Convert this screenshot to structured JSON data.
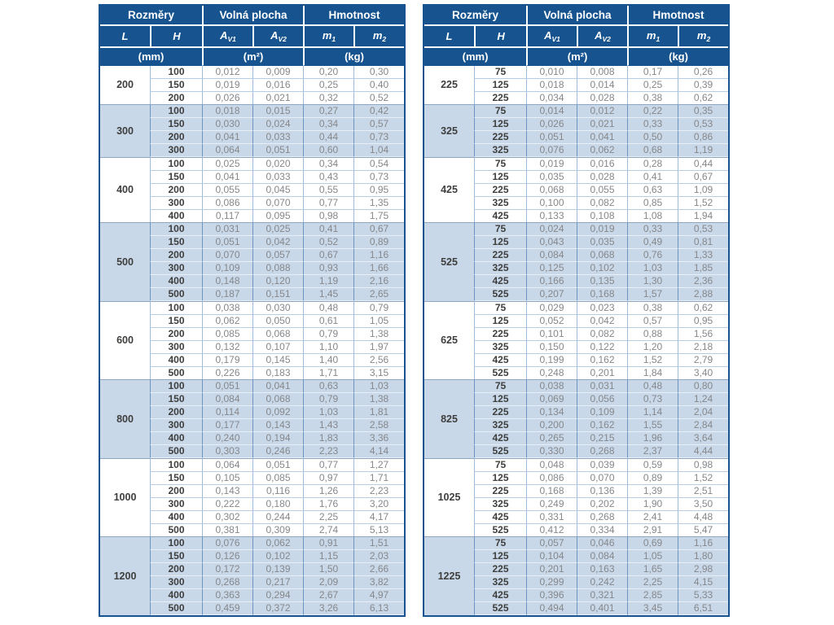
{
  "colors": {
    "header_bg": "#17548f",
    "header_text": "#ffffff",
    "group_shade_bg": "#c9d8e9",
    "shade_border": "#6b94c4",
    "light_border": "#9fbddb",
    "group_divider": "#8fa6c0",
    "value_text": "#85878a",
    "label_text": "#3e3e3d"
  },
  "header": {
    "groups": [
      {
        "label": "Rozměry"
      },
      {
        "label": "Volná plocha"
      },
      {
        "label": "Hmotnost"
      }
    ],
    "cols": [
      {
        "base": "L"
      },
      {
        "base": "H"
      },
      {
        "base": "A",
        "sub": "V1"
      },
      {
        "base": "A",
        "sub": "V2"
      },
      {
        "base": "m",
        "sub": "1"
      },
      {
        "base": "m",
        "sub": "2"
      }
    ],
    "units": [
      {
        "label": "(mm)"
      },
      {
        "label": "(m²)"
      },
      {
        "label": "(kg)"
      }
    ]
  },
  "tables": [
    {
      "name": "left",
      "groups": [
        {
          "L": "200",
          "rows": [
            [
              "100",
              "0,012",
              "0,009",
              "0,20",
              "0,30"
            ],
            [
              "150",
              "0,019",
              "0,016",
              "0,25",
              "0,40"
            ],
            [
              "200",
              "0,026",
              "0,021",
              "0,32",
              "0,52"
            ]
          ]
        },
        {
          "L": "300",
          "rows": [
            [
              "100",
              "0,018",
              "0,015",
              "0,27",
              "0,42"
            ],
            [
              "150",
              "0,030",
              "0,024",
              "0,34",
              "0,57"
            ],
            [
              "200",
              "0,041",
              "0,033",
              "0,44",
              "0,73"
            ],
            [
              "300",
              "0,064",
              "0,051",
              "0,60",
              "1,04"
            ]
          ]
        },
        {
          "L": "400",
          "rows": [
            [
              "100",
              "0,025",
              "0,020",
              "0,34",
              "0,54"
            ],
            [
              "150",
              "0,041",
              "0,033",
              "0,43",
              "0,73"
            ],
            [
              "200",
              "0,055",
              "0,045",
              "0,55",
              "0,95"
            ],
            [
              "300",
              "0,086",
              "0,070",
              "0,77",
              "1,35"
            ],
            [
              "400",
              "0,117",
              "0,095",
              "0,98",
              "1,75"
            ]
          ]
        },
        {
          "L": "500",
          "rows": [
            [
              "100",
              "0,031",
              "0,025",
              "0,41",
              "0,67"
            ],
            [
              "150",
              "0,051",
              "0,042",
              "0,52",
              "0,89"
            ],
            [
              "200",
              "0,070",
              "0,057",
              "0,67",
              "1,16"
            ],
            [
              "300",
              "0,109",
              "0,088",
              "0,93",
              "1,66"
            ],
            [
              "400",
              "0,148",
              "0,120",
              "1,19",
              "2,16"
            ],
            [
              "500",
              "0,187",
              "0,151",
              "1,45",
              "2,65"
            ]
          ]
        },
        {
          "L": "600",
          "rows": [
            [
              "100",
              "0,038",
              "0,030",
              "0,48",
              "0,79"
            ],
            [
              "150",
              "0,062",
              "0,050",
              "0,61",
              "1,05"
            ],
            [
              "200",
              "0,085",
              "0,068",
              "0,79",
              "1,38"
            ],
            [
              "300",
              "0,132",
              "0,107",
              "1,10",
              "1,97"
            ],
            [
              "400",
              "0,179",
              "0,145",
              "1,40",
              "2,56"
            ],
            [
              "500",
              "0,226",
              "0,183",
              "1,71",
              "3,15"
            ]
          ]
        },
        {
          "L": "800",
          "rows": [
            [
              "100",
              "0,051",
              "0,041",
              "0,63",
              "1,03"
            ],
            [
              "150",
              "0,084",
              "0,068",
              "0,79",
              "1,38"
            ],
            [
              "200",
              "0,114",
              "0,092",
              "1,03",
              "1,81"
            ],
            [
              "300",
              "0,177",
              "0,143",
              "1,43",
              "2,58"
            ],
            [
              "400",
              "0,240",
              "0,194",
              "1,83",
              "3,36"
            ],
            [
              "500",
              "0,303",
              "0,246",
              "2,23",
              "4,14"
            ]
          ]
        },
        {
          "L": "1000",
          "rows": [
            [
              "100",
              "0,064",
              "0,051",
              "0,77",
              "1,27"
            ],
            [
              "150",
              "0,105",
              "0,085",
              "0,97",
              "1,71"
            ],
            [
              "200",
              "0,143",
              "0,116",
              "1,26",
              "2,23"
            ],
            [
              "300",
              "0,222",
              "0,180",
              "1,76",
              "3,20"
            ],
            [
              "400",
              "0,302",
              "0,244",
              "2,25",
              "4,17"
            ],
            [
              "500",
              "0,381",
              "0,309",
              "2,74",
              "5,13"
            ]
          ]
        },
        {
          "L": "1200",
          "rows": [
            [
              "100",
              "0,076",
              "0,062",
              "0,91",
              "1,51"
            ],
            [
              "150",
              "0,126",
              "0,102",
              "1,15",
              "2,03"
            ],
            [
              "200",
              "0,172",
              "0,139",
              "1,50",
              "2,66"
            ],
            [
              "300",
              "0,268",
              "0,217",
              "2,09",
              "3,82"
            ],
            [
              "400",
              "0,363",
              "0,294",
              "2,67",
              "4,97"
            ],
            [
              "500",
              "0,459",
              "0,372",
              "3,26",
              "6,13"
            ]
          ]
        }
      ]
    },
    {
      "name": "right",
      "groups": [
        {
          "L": "225",
          "rows": [
            [
              "75",
              "0,010",
              "0,008",
              "0,17",
              "0,26"
            ],
            [
              "125",
              "0,018",
              "0,014",
              "0,25",
              "0,39"
            ],
            [
              "225",
              "0,034",
              "0,028",
              "0,38",
              "0,62"
            ]
          ]
        },
        {
          "L": "325",
          "rows": [
            [
              "75",
              "0,014",
              "0,012",
              "0,22",
              "0,35"
            ],
            [
              "125",
              "0,026",
              "0,021",
              "0,33",
              "0,53"
            ],
            [
              "225",
              "0,051",
              "0,041",
              "0,50",
              "0,86"
            ],
            [
              "325",
              "0,076",
              "0,062",
              "0,68",
              "1,19"
            ]
          ]
        },
        {
          "L": "425",
          "rows": [
            [
              "75",
              "0,019",
              "0,016",
              "0,28",
              "0,44"
            ],
            [
              "125",
              "0,035",
              "0,028",
              "0,41",
              "0,67"
            ],
            [
              "225",
              "0,068",
              "0,055",
              "0,63",
              "1,09"
            ],
            [
              "325",
              "0,100",
              "0,082",
              "0,85",
              "1,52"
            ],
            [
              "425",
              "0,133",
              "0,108",
              "1,08",
              "1,94"
            ]
          ]
        },
        {
          "L": "525",
          "rows": [
            [
              "75",
              "0,024",
              "0,019",
              "0,33",
              "0,53"
            ],
            [
              "125",
              "0,043",
              "0,035",
              "0,49",
              "0,81"
            ],
            [
              "225",
              "0,084",
              "0,068",
              "0,76",
              "1,33"
            ],
            [
              "325",
              "0,125",
              "0,102",
              "1,03",
              "1,85"
            ],
            [
              "425",
              "0,166",
              "0,135",
              "1,30",
              "2,36"
            ],
            [
              "525",
              "0,207",
              "0,168",
              "1,57",
              "2,88"
            ]
          ]
        },
        {
          "L": "625",
          "rows": [
            [
              "75",
              "0,029",
              "0,023",
              "0,38",
              "0,62"
            ],
            [
              "125",
              "0,052",
              "0,042",
              "0,57",
              "0,95"
            ],
            [
              "225",
              "0,101",
              "0,082",
              "0,88",
              "1,56"
            ],
            [
              "325",
              "0,150",
              "0,122",
              "1,20",
              "2,18"
            ],
            [
              "425",
              "0,199",
              "0,162",
              "1,52",
              "2,79"
            ],
            [
              "525",
              "0,248",
              "0,201",
              "1,84",
              "3,40"
            ]
          ]
        },
        {
          "L": "825",
          "rows": [
            [
              "75",
              "0,038",
              "0,031",
              "0,48",
              "0,80"
            ],
            [
              "125",
              "0,069",
              "0,056",
              "0,73",
              "1,24"
            ],
            [
              "225",
              "0,134",
              "0,109",
              "1,14",
              "2,04"
            ],
            [
              "325",
              "0,200",
              "0,162",
              "1,55",
              "2,84"
            ],
            [
              "425",
              "0,265",
              "0,215",
              "1,96",
              "3,64"
            ],
            [
              "525",
              "0,330",
              "0,268",
              "2,37",
              "4,44"
            ]
          ]
        },
        {
          "L": "1025",
          "rows": [
            [
              "75",
              "0,048",
              "0,039",
              "0,59",
              "0,98"
            ],
            [
              "125",
              "0,086",
              "0,070",
              "0,89",
              "1,52"
            ],
            [
              "225",
              "0,168",
              "0,136",
              "1,39",
              "2,51"
            ],
            [
              "325",
              "0,249",
              "0,202",
              "1,90",
              "3,50"
            ],
            [
              "425",
              "0,331",
              "0,268",
              "2,41",
              "4,48"
            ],
            [
              "525",
              "0,412",
              "0,334",
              "2,91",
              "5,47"
            ]
          ]
        },
        {
          "L": "1225",
          "rows": [
            [
              "75",
              "0,057",
              "0,046",
              "0,69",
              "1,16"
            ],
            [
              "125",
              "0,104",
              "0,084",
              "1,05",
              "1,80"
            ],
            [
              "225",
              "0,201",
              "0,163",
              "1,65",
              "2,98"
            ],
            [
              "325",
              "0,299",
              "0,242",
              "2,25",
              "4,15"
            ],
            [
              "425",
              "0,396",
              "0,321",
              "2,85",
              "5,33"
            ],
            [
              "525",
              "0,494",
              "0,401",
              "3,45",
              "6,51"
            ]
          ]
        }
      ]
    }
  ]
}
